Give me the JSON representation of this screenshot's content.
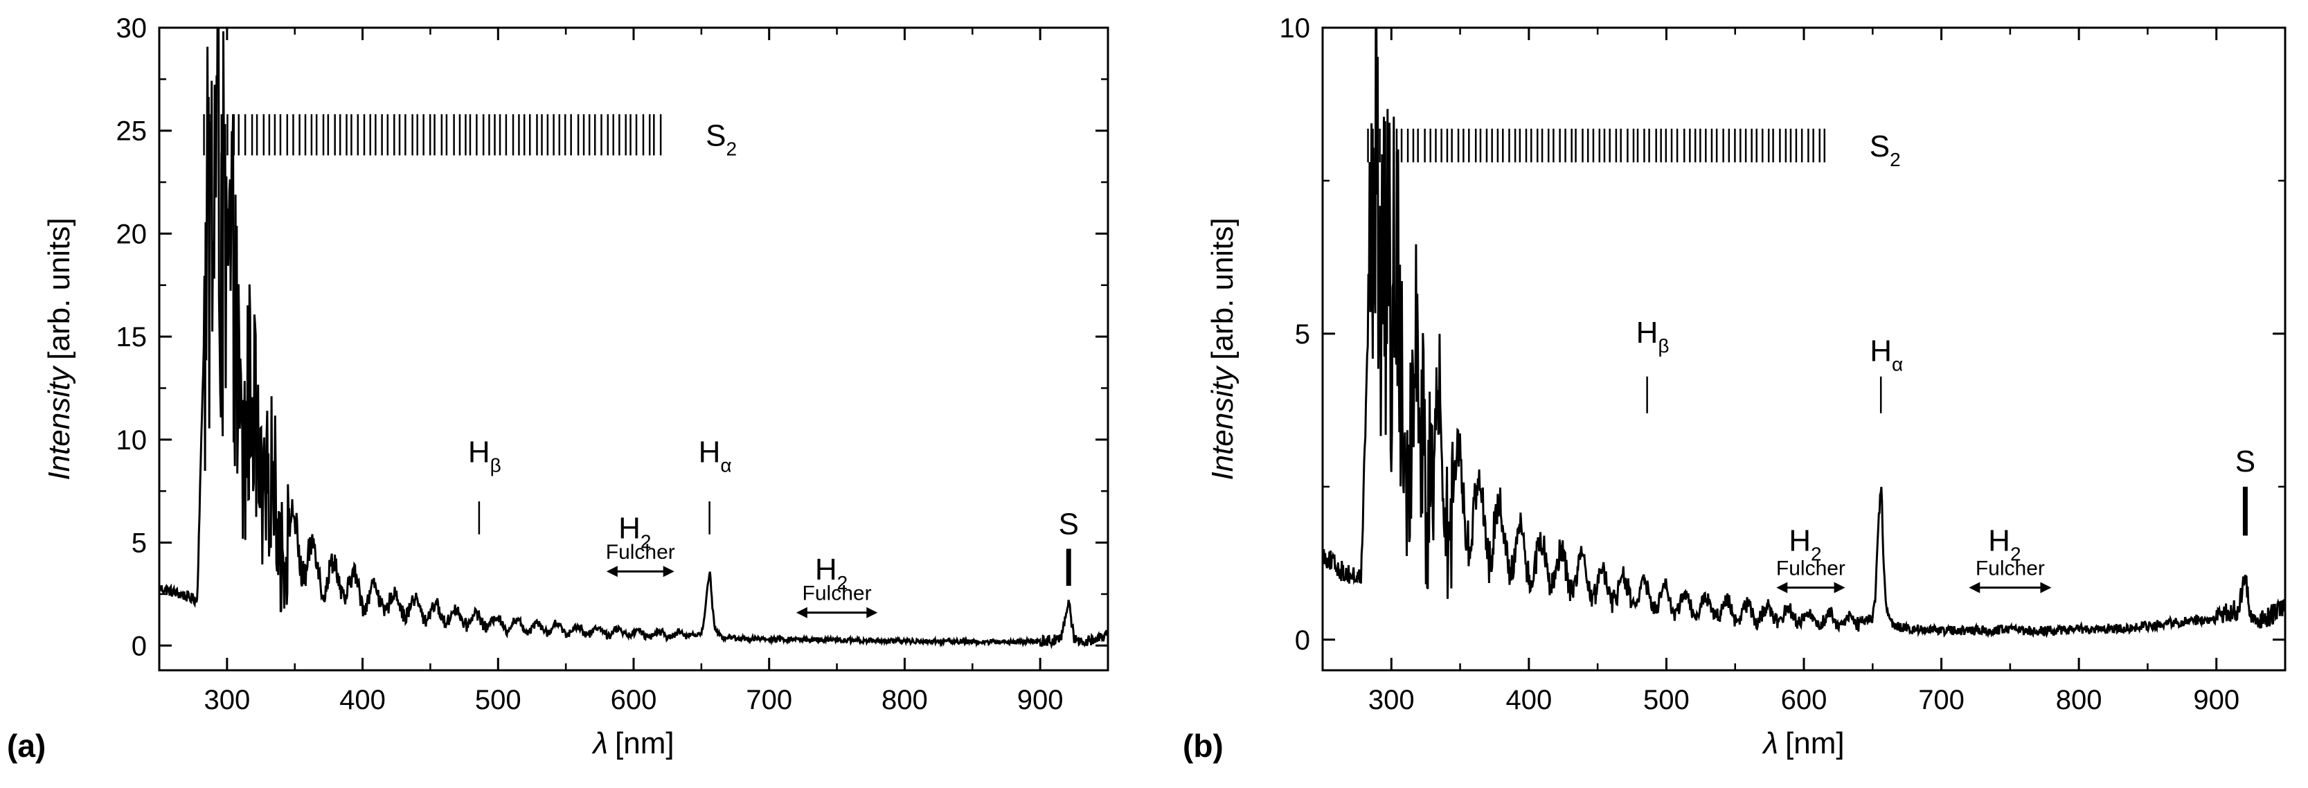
{
  "chart_data": [
    {
      "panel": "(a)",
      "type": "line",
      "xlabel_italic": "λ",
      "xlabel_unit": "[nm]",
      "ylabel_italic": "Intensity",
      "ylabel_unit": "[arb. units]",
      "xlim": [
        250,
        950
      ],
      "ylim": [
        -1.2,
        30
      ],
      "xticks": [
        300,
        400,
        500,
        600,
        700,
        800,
        900
      ],
      "yticks": [
        0,
        5,
        10,
        15,
        20,
        25,
        30
      ],
      "noise_level": 0.12,
      "s2_bands": {
        "label": "S",
        "sub": "2",
        "x_start": 283,
        "x_end": 620,
        "y_low": 23.8,
        "y_high": 25.8,
        "count": 78
      },
      "spectrum": {
        "x": [
          250,
          265,
          278,
          283,
          285,
          288,
          291,
          294,
          297,
          300,
          305,
          310,
          315,
          320,
          325,
          330,
          335,
          340,
          350,
          360,
          370,
          380,
          390,
          400,
          420,
          440,
          460,
          480,
          500,
          520,
          540,
          560,
          580,
          600,
          620,
          640,
          650,
          652,
          654,
          656.3,
          658,
          660,
          665,
          680,
          700,
          720,
          740,
          760,
          780,
          800,
          820,
          840,
          860,
          880,
          900,
          915,
          919,
          921,
          923,
          925,
          930,
          940,
          950
        ],
        "y": [
          2.8,
          2.5,
          2.2,
          15.0,
          18.5,
          20.5,
          22.5,
          23.0,
          19.5,
          16.0,
          14.0,
          12.5,
          11.0,
          9.5,
          8.5,
          7.5,
          6.5,
          5.8,
          5.0,
          4.2,
          3.6,
          3.2,
          2.9,
          2.6,
          2.1,
          1.8,
          1.5,
          1.3,
          1.1,
          0.95,
          0.85,
          0.75,
          0.68,
          0.6,
          0.55,
          0.5,
          0.6,
          1.2,
          2.6,
          3.7,
          2.0,
          0.8,
          0.4,
          0.35,
          0.3,
          0.3,
          0.28,
          0.25,
          0.24,
          0.22,
          0.2,
          0.2,
          0.18,
          0.18,
          0.2,
          0.3,
          1.5,
          2.2,
          1.2,
          0.4,
          0.2,
          0.3,
          0.5
        ],
        "oscillation": {
          "from": 300,
          "to": 640,
          "period": 15,
          "amp_scale": 0.45
        }
      },
      "annotations": [
        {
          "name": "h-beta",
          "label": "H",
          "sub": "β",
          "x": 486,
          "tick_y0": 5.4,
          "tick_y1": 7.0,
          "label_y": 8.9
        },
        {
          "name": "h-alpha",
          "label": "H",
          "sub": "α",
          "x": 656,
          "tick_y0": 5.4,
          "tick_y1": 7.0,
          "label_y": 8.9
        },
        {
          "name": "sulfur",
          "label": "S",
          "x": 921,
          "tick_y0": 2.9,
          "tick_y1": 4.7,
          "label_y": 5.4
        }
      ],
      "fulcher": [
        {
          "label": "H",
          "sub": "2",
          "text": "Fulcher",
          "x_from": 580,
          "x_to": 630,
          "arrow_y": 3.6,
          "label_y": 5.2
        },
        {
          "label": "H",
          "sub": "2",
          "text": "Fulcher",
          "x_from": 720,
          "x_to": 780,
          "arrow_y": 1.6,
          "label_y": 3.2
        }
      ]
    },
    {
      "panel": "(b)",
      "type": "line",
      "xlabel_italic": "λ",
      "xlabel_unit": "[nm]",
      "ylabel_italic": "Intensity",
      "ylabel_unit": "[arb. units]",
      "xlim": [
        250,
        950
      ],
      "ylim": [
        -0.5,
        10
      ],
      "xticks": [
        300,
        400,
        500,
        600,
        700,
        800,
        900
      ],
      "yticks": [
        0,
        5,
        10
      ],
      "noise_level": 0.08,
      "s2_bands": {
        "label": "S",
        "sub": "2",
        "x_start": 283,
        "x_end": 615,
        "y_low": 7.8,
        "y_high": 8.35,
        "count": 82
      },
      "spectrum": {
        "x": [
          250,
          265,
          278,
          283,
          285,
          288,
          291,
          294,
          297,
          300,
          305,
          310,
          315,
          320,
          325,
          330,
          340,
          350,
          360,
          370,
          380,
          390,
          400,
          420,
          440,
          460,
          480,
          500,
          520,
          540,
          560,
          580,
          600,
          620,
          640,
          650,
          652,
          654,
          656.3,
          658,
          660,
          665,
          680,
          700,
          720,
          740,
          760,
          780,
          800,
          820,
          840,
          860,
          880,
          900,
          915,
          919,
          921,
          923,
          925,
          930,
          940,
          950
        ],
        "y": [
          1.4,
          1.1,
          1.0,
          5.0,
          6.0,
          6.8,
          7.2,
          7.0,
          6.0,
          5.2,
          4.6,
          4.2,
          3.8,
          3.5,
          3.2,
          3.0,
          2.7,
          2.4,
          2.1,
          1.9,
          1.7,
          1.5,
          1.35,
          1.15,
          1.0,
          0.85,
          0.75,
          0.65,
          0.55,
          0.5,
          0.45,
          0.4,
          0.36,
          0.33,
          0.3,
          0.35,
          0.7,
          1.8,
          2.6,
          1.2,
          0.5,
          0.22,
          0.18,
          0.15,
          0.15,
          0.16,
          0.15,
          0.15,
          0.17,
          0.18,
          0.2,
          0.25,
          0.3,
          0.35,
          0.5,
          0.8,
          1.0,
          0.7,
          0.4,
          0.3,
          0.4,
          0.5
        ],
        "oscillation": {
          "from": 300,
          "to": 640,
          "period": 15,
          "amp_scale": 0.5
        }
      },
      "annotations": [
        {
          "name": "h-beta",
          "label": "H",
          "sub": "β",
          "x": 486,
          "tick_y0": 3.7,
          "tick_y1": 4.3,
          "label_y": 4.85
        },
        {
          "name": "h-alpha",
          "label": "H",
          "sub": "α",
          "x": 656,
          "tick_y0": 3.7,
          "tick_y1": 4.3,
          "label_y": 4.55
        },
        {
          "name": "sulfur",
          "label": "S",
          "x": 921,
          "tick_y0": 1.7,
          "tick_y1": 2.5,
          "label_y": 2.75
        }
      ],
      "fulcher": [
        {
          "label": "H",
          "sub": "2",
          "text": "Fulcher",
          "x_from": 580,
          "x_to": 630,
          "arrow_y": 0.85,
          "label_y": 1.45
        },
        {
          "label": "H",
          "sub": "2",
          "text": "Fulcher",
          "x_from": 720,
          "x_to": 780,
          "arrow_y": 0.85,
          "label_y": 1.45
        }
      ]
    }
  ]
}
